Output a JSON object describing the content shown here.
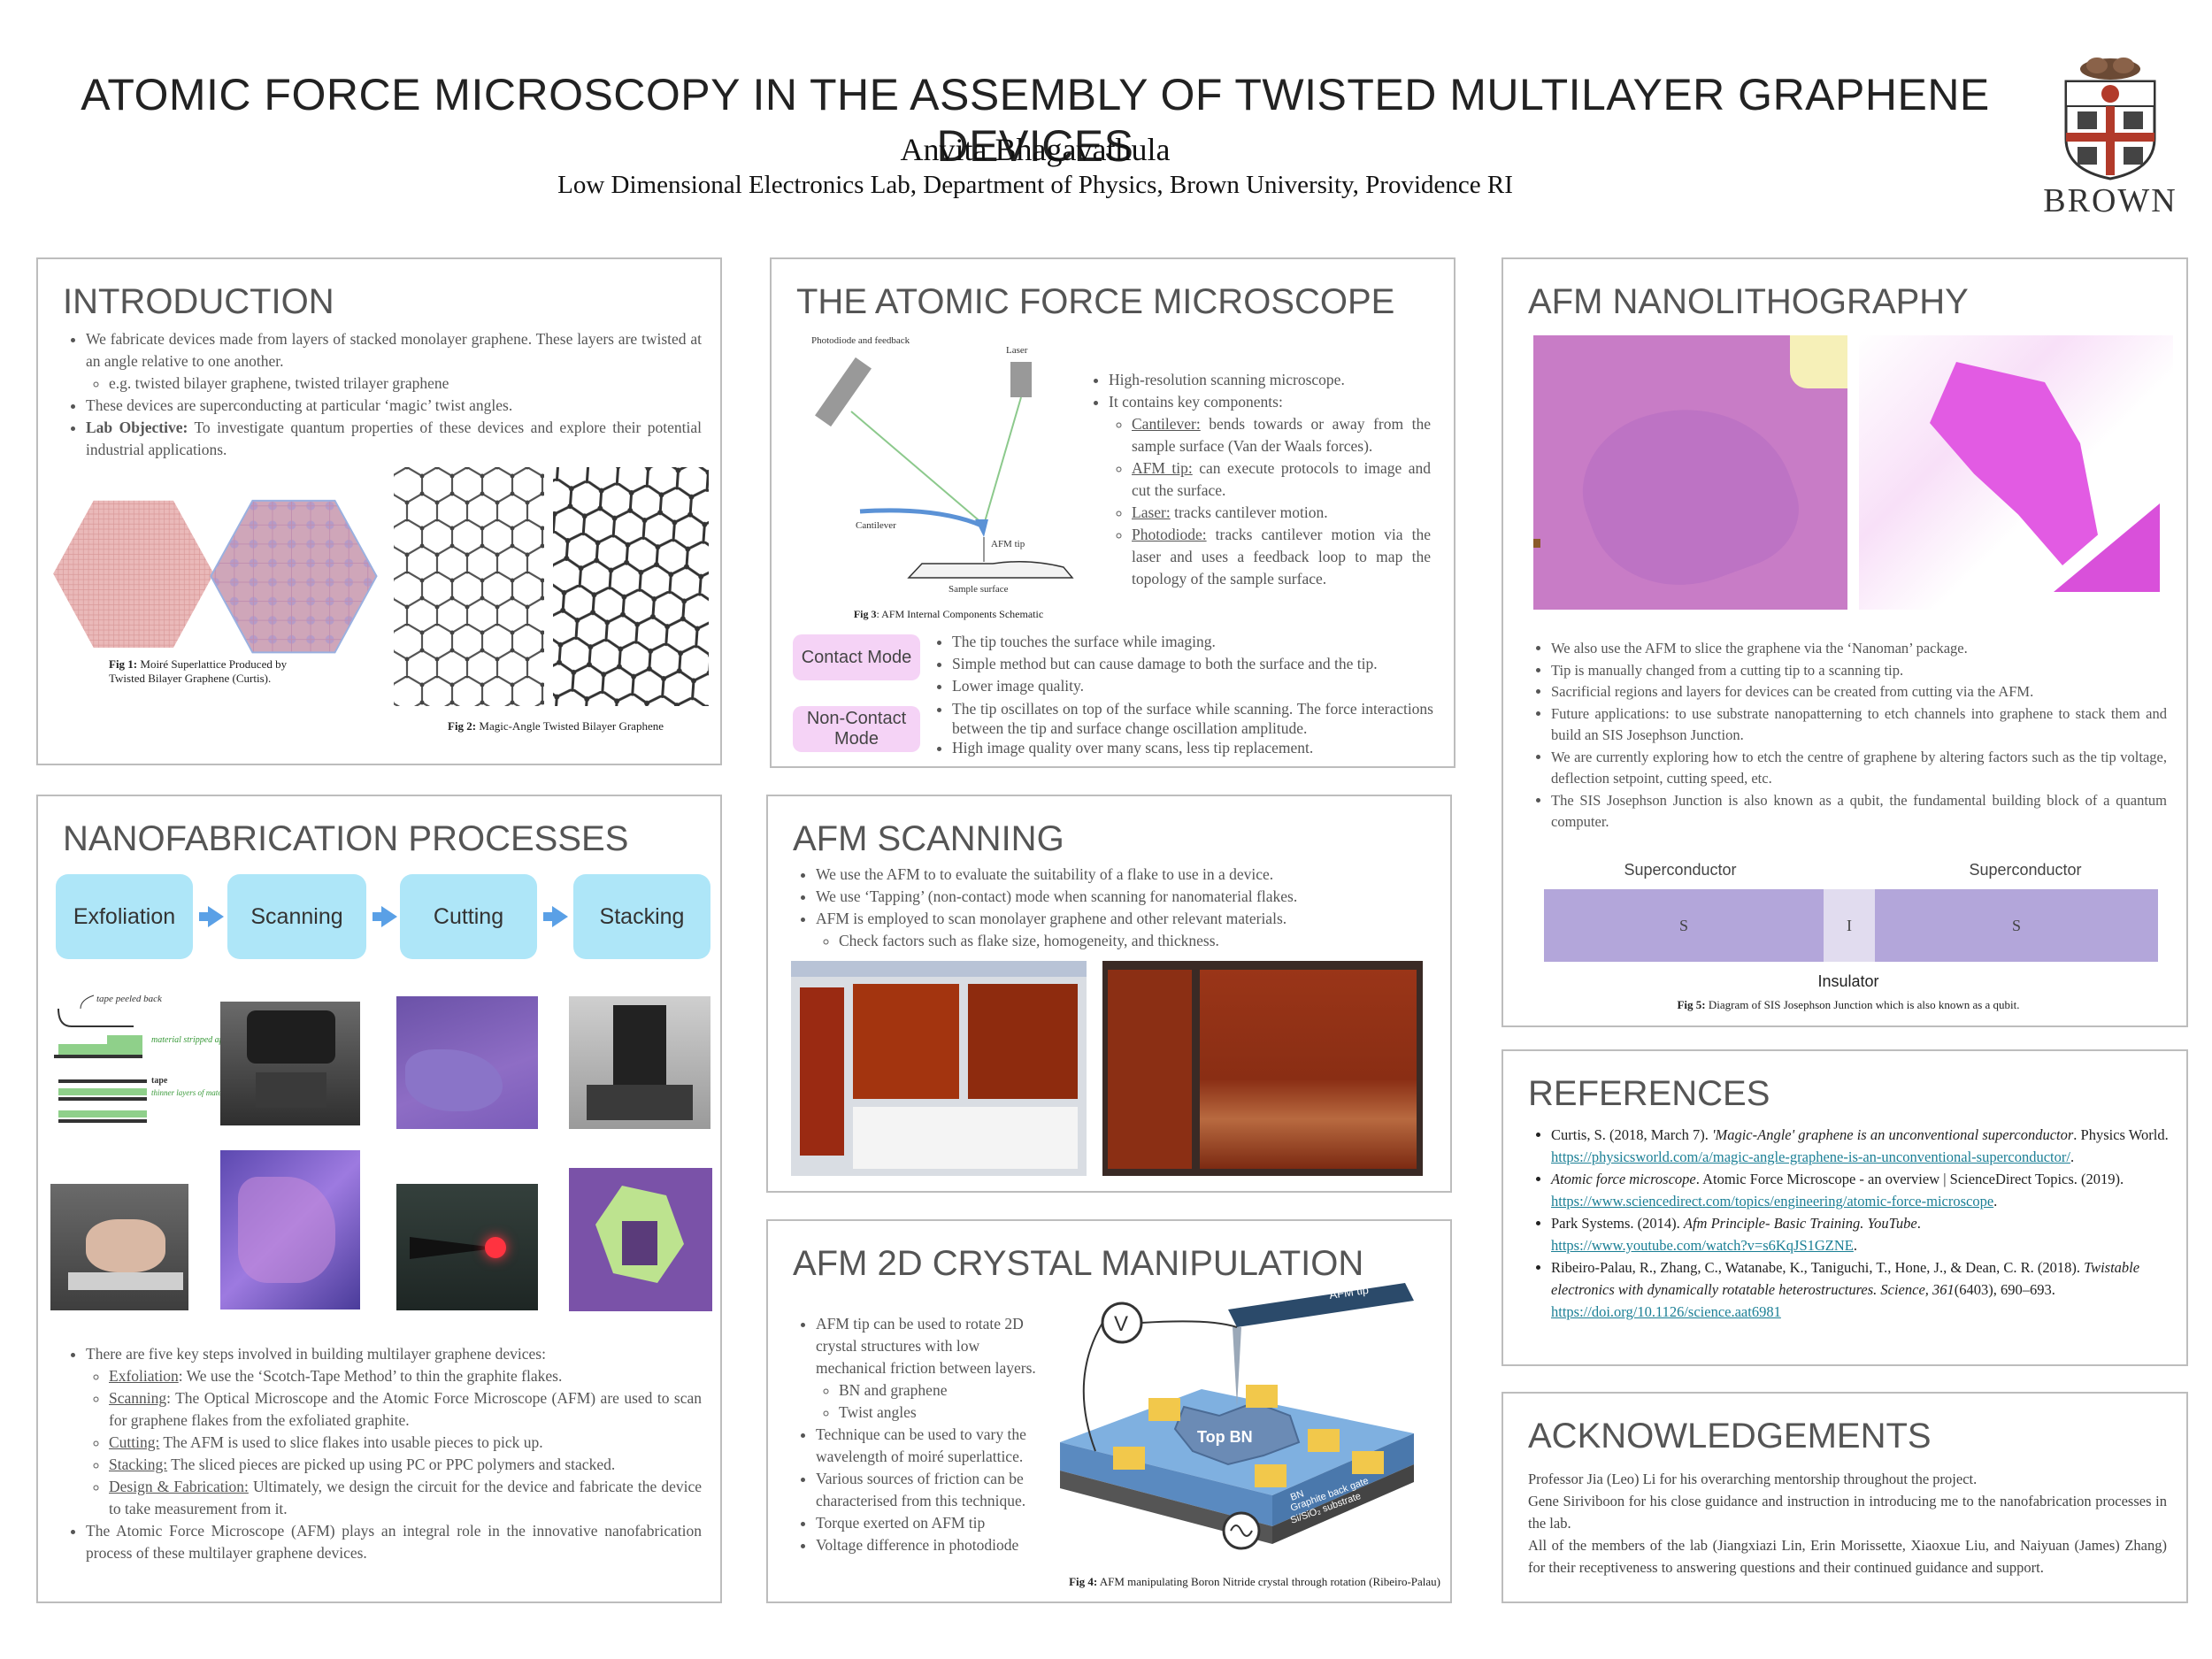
{
  "header": {
    "title": "ATOMIC FORCE MICROSCOPY IN THE ASSEMBLY OF TWISTED MULTILAYER GRAPHENE DEVICES",
    "author": "Anvita Bhagavathula",
    "affiliation": "Low Dimensional Electronics Lab, Department of Physics, Brown University, Providence RI",
    "logo_text": "BROWN"
  },
  "intro": {
    "heading": "INTRODUCTION",
    "b1": "We fabricate devices made from layers of stacked monolayer graphene. These layers are twisted at an angle relative to one another.",
    "b1_sub": "e.g. twisted bilayer graphene, twisted trilayer graphene",
    "b2": "These devices are superconducting at particular ‘magic’ twist angles.",
    "b3_label": "Lab Objective:",
    "b3": " To investigate quantum properties of these devices and explore their potential industrial applications.",
    "fig1_label": "Fig 1:",
    "fig1": " Moiré Superlattice Produced by Twisted Bilayer Graphene (Curtis).",
    "fig2_label": "Fig 2:",
    "fig2": " Magic-Angle Twisted Bilayer Graphene"
  },
  "afm": {
    "heading": "THE ATOMIC FORCE MICROSCOPE",
    "schem_photodiode": "Photodiode and feedback",
    "schem_laser": "Laser",
    "schem_cantilever": "Cantilever",
    "schem_tip": "AFM tip",
    "schem_sample": "Sample surface",
    "fig3_label": "Fig 3",
    "fig3": ": AFM Internal Components Schematic",
    "b1": "High-resolution scanning microscope.",
    "b2": "It contains key components:",
    "c1_label": "Cantilever:",
    "c1": " bends towards or away from the sample surface (Van der Waals forces).",
    "c2_label": "AFM tip:",
    "c2": " can execute protocols to image and cut the surface.",
    "c3_label": "Laser:",
    "c3": " tracks cantilever motion.",
    "c4_label": "Photodiode:",
    "c4": " tracks cantilever motion via the laser and uses a feedback loop to map the topology of the sample surface.",
    "mode1": "Contact Mode",
    "mode1_b1": "The tip touches the surface while imaging.",
    "mode1_b2": "Simple method but can cause damage to both the surface and the tip.",
    "mode1_b3": "Lower image quality.",
    "mode2": "Non-Contact Mode",
    "mode2_b1": "The tip oscillates on top of the surface while scanning. The force interactions between the tip and surface change oscillation amplitude.",
    "mode2_b2": "High image quality over many scans, less tip replacement."
  },
  "nanolitho": {
    "heading": "AFM NANOLITHOGRAPHY",
    "b1": "We also use the AFM to slice the graphene via the ‘Nanoman’ package.",
    "b2": "Tip is manually changed from a cutting tip to a scanning tip.",
    "b3": "Sacrificial regions and layers for devices can be created from cutting via the AFM.",
    "b4": "Future applications: to use substrate nanopatterning to etch channels into graphene to stack them and build an SIS Josephson Junction.",
    "b5": "We are currently exploring how to etch the centre of graphene by altering factors such as the tip voltage, deflection setpoint, cutting speed, etc.",
    "b6": "The SIS Josephson Junction is also known as a qubit, the fundamental building block of a quantum computer.",
    "sup_left": "Superconductor",
    "sup_right": "Superconductor",
    "s_left": "S",
    "i_mid": "I",
    "s_right": "S",
    "insulator": "Insulator",
    "fig5_label": "Fig 5:",
    "fig5": " Diagram of SIS Josephson Junction which is also known as a qubit."
  },
  "nanofab": {
    "heading": "NANOFABRICATION PROCESSES",
    "steps": [
      "Exfoliation",
      "Scanning",
      "Cutting",
      "Stacking"
    ],
    "sketch_tape_peeled": "tape peeled back",
    "sketch_material": "material stripped apart",
    "sketch_tape": "tape",
    "sketch_thinner": "thinner layers of material remaining",
    "b_intro": "There are five key steps involved in building multilayer graphene devices:",
    "s1_label": "Exfoliation",
    "s1": ": We use the ‘Scotch-Tape Method’ to thin the graphite flakes.",
    "s2_label": "Scanning",
    "s2": ": The Optical Microscope and the Atomic Force Microscope (AFM) are used to scan for graphene flakes from the exfoliated graphite.",
    "s3_label": "Cutting:",
    "s3": " The AFM is used to slice flakes into usable pieces to pick up.",
    "s4_label": "Stacking:",
    "s4": " The sliced pieces are picked up using PC or PPC polymers and stacked.",
    "s5_label": "Design & Fabrication:",
    "s5": " Ultimately, we design the circuit for the device and fabricate the device to take measurement from it.",
    "b_end": "The Atomic Force Microscope (AFM) plays an integral role in the innovative nanofabrication process of these multilayer graphene devices."
  },
  "scanning": {
    "heading": "AFM SCANNING",
    "b1": "We use the AFM to to evaluate the suitability of a flake to use in a device.",
    "b2": "We use ‘Tapping’ (non-contact) mode when scanning for nanomaterial flakes.",
    "b3": "AFM is employed to scan monolayer graphene and other relevant materials.",
    "b3_sub": "Check factors such as flake size, homogeneity, and thickness."
  },
  "crystal": {
    "heading": "AFM 2D CRYSTAL MANIPULATION",
    "b1": "AFM tip can be used to rotate 2D crystal structures with low mechanical friction between layers.",
    "b1_s1": "BN and graphene",
    "b1_s2": "Twist angles",
    "b2": "Technique can be used to vary the wavelength of moiré superlattice.",
    "b3": "Various sources of friction can be characterised from this technique.",
    "b4": "Torque exerted on AFM tip",
    "b5": "Voltage difference in photodiode",
    "diag_tip": "AFM tip",
    "diag_v": "V",
    "diag_topbn": "Top BN",
    "diag_bn": "BN",
    "diag_gate": "Graphite back gate",
    "diag_substrate": "Si/SiO₂ substrate",
    "fig4_label": "Fig 4:",
    "fig4": " AFM manipulating Boron Nitride crystal through rotation (Ribeiro-Palau)"
  },
  "refs": {
    "heading": "REFERENCES",
    "r1_a": "Curtis, S. (2018, March 7). ",
    "r1_i": "'Magic-Angle' graphene is an unconventional superconductor",
    "r1_b": ". Physics World.",
    "r1_link": "https://physicsworld.com/a/magic-angle-graphene-is-an-unconventional-superconductor/",
    "r2_i": "Atomic force microscope",
    "r2_a": ". Atomic Force Microscope - an overview | ScienceDirect Topics. (2019). ",
    "r2_link": "https://www.sciencedirect.com/topics/engineering/atomic-force-microscope",
    "r3_a": "Park Systems. (2014). ",
    "r3_i": "Afm Principle- Basic Training. YouTube",
    "r3_b": ".",
    "r3_link": "https://www.youtube.com/watch?v=s6KqJS1GZNE",
    "r4_a": "Ribeiro-Palau, R., Zhang, C., Watanabe, K., Taniguchi, T., Hone, J., & Dean, C. R. (2018). ",
    "r4_i": "Twistable electronics with dynamically rotatable heterostructures. Science, 361",
    "r4_b": "(6403), 690–693. ",
    "r4_link": "https://doi.org/10.1126/science.aat6981"
  },
  "ack": {
    "heading": "ACKNOWLEDGEMENTS",
    "p1": "Professor Jia (Leo) Li for his overarching mentorship throughout the project.",
    "p2": "Gene Siriviboon for his close guidance and instruction in introducing me to the nanofabrication processes in the lab.",
    "p3": "All of the members of the lab (Jiangxiazi Lin, Erin Morissette, Xiaoxue Liu, and Naiyuan (James) Zhang) for their receptiveness to answering questions and their continued guidance and support."
  },
  "colors": {
    "step_box": "#aee6f8",
    "mode_box": "#f5d3f6",
    "junction_s": "#b3a6da",
    "junction_i": "#e1dcef",
    "link": "#1b7f95"
  }
}
